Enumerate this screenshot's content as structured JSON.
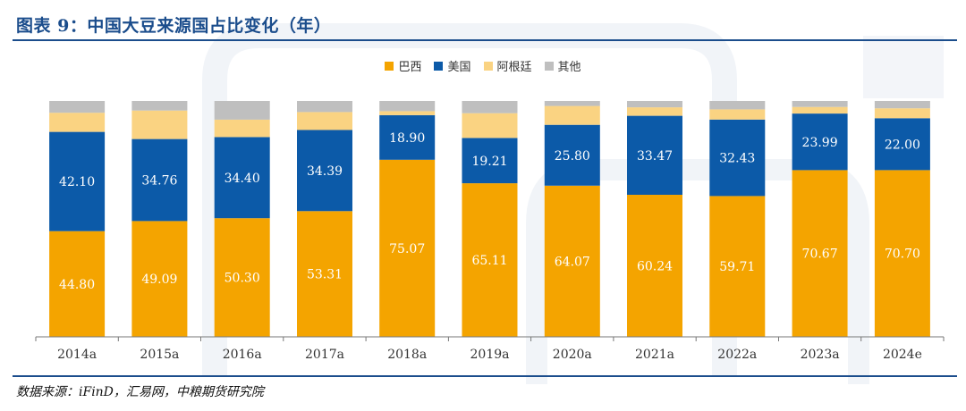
{
  "header": {
    "title": "图表 9：中国大豆来源国占比变化（年）"
  },
  "footer": {
    "source": "数据来源：iFinD，汇易网，中粮期货研究院"
  },
  "chart_data": {
    "type": "bar",
    "stacked": true,
    "title": "",
    "xlabel": "",
    "ylabel": "",
    "ylim": [
      0,
      100
    ],
    "grid": false,
    "legend_position": "top-center",
    "categories": [
      "2014a",
      "2015a",
      "2016a",
      "2017a",
      "2018a",
      "2019a",
      "2020a",
      "2021a",
      "2022a",
      "2023a",
      "2024e"
    ],
    "series": [
      {
        "name": "巴西",
        "color": "#f4a400",
        "label_color": "#ffffff",
        "values": [
          44.8,
          49.09,
          50.3,
          53.31,
          75.07,
          65.11,
          64.07,
          60.24,
          59.71,
          70.67,
          70.7
        ],
        "labels": [
          "44.80",
          "49.09",
          "50.30",
          "53.31",
          "75.07",
          "65.11",
          "64.07",
          "60.24",
          "59.71",
          "70.67",
          "70.70"
        ]
      },
      {
        "name": "美国",
        "color": "#0c5aa8",
        "label_color": "#ffffff",
        "values": [
          42.1,
          34.76,
          34.4,
          34.39,
          18.9,
          19.21,
          25.8,
          33.47,
          32.43,
          23.99,
          22.0
        ],
        "labels": [
          "42.10",
          "34.76",
          "34.40",
          "34.39",
          "18.90",
          "19.21",
          "25.80",
          "33.47",
          "32.43",
          "23.99",
          "22.00"
        ]
      },
      {
        "name": "阿根廷",
        "color": "#fad382",
        "values": [
          8.1,
          12.1,
          7.4,
          7.6,
          1.7,
          10.5,
          8.0,
          3.6,
          4.3,
          2.8,
          4.2
        ]
      },
      {
        "name": "其他",
        "color": "#bfbfbf",
        "values": [
          5.0,
          4.05,
          7.9,
          4.7,
          4.33,
          5.18,
          2.13,
          2.69,
          3.56,
          2.54,
          3.1
        ]
      }
    ]
  }
}
